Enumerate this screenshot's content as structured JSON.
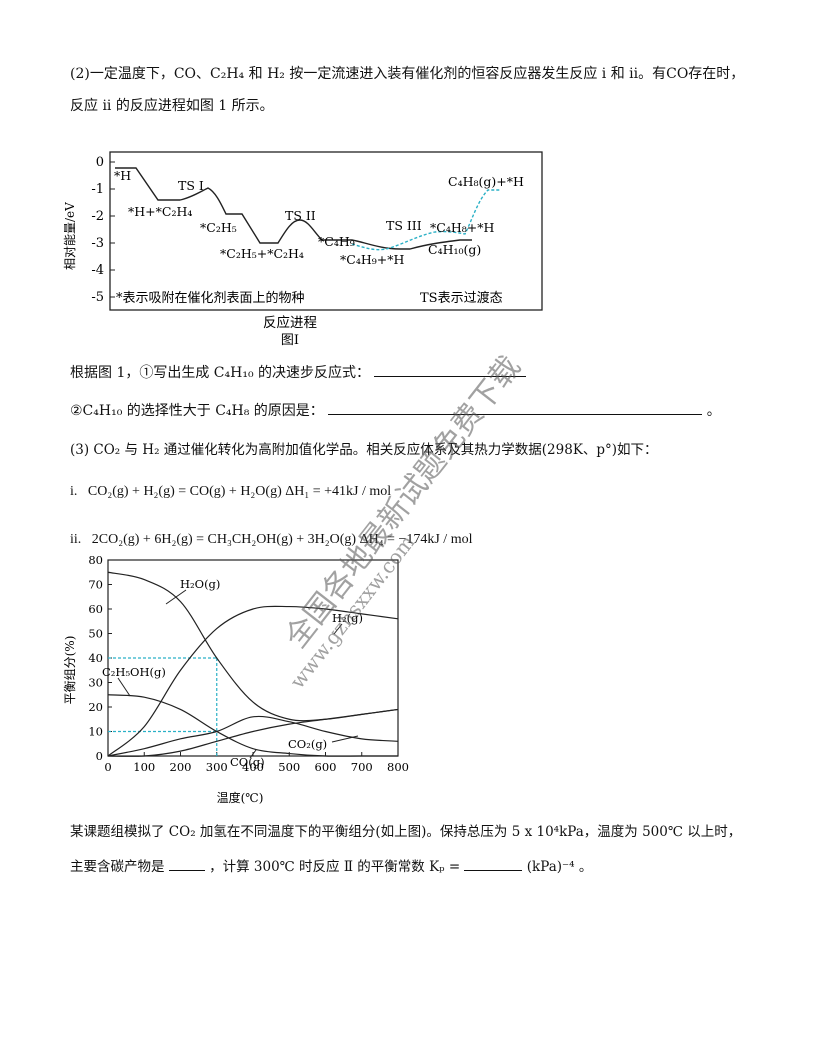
{
  "q2": {
    "line1": "(2)一定温度下，CO、C₂H₄ 和 H₂ 按一定流速进入装有催化剂的恒容反应器发生反应 i 和 ii。有CO存在时，",
    "line2": "反应 ii 的反应进程如图 1 所示。",
    "ask1_prefix": "根据图 1，①写出生成 C₄H₁₀ 的决速步反应式：",
    "ask2_prefix": "②C₄H₁₀ 的选择性大于 C₄H₈ 的原因是：",
    "ask2_suffix": "。"
  },
  "fig1": {
    "ylabel": "相对能量/eV",
    "xlabel": "反应进程",
    "caption": "图Ⅰ",
    "yticks": [
      "0",
      "-1",
      "-2",
      "-3",
      "-4",
      "-5"
    ],
    "note_left": "*表示吸附在催化剂表面上的物种",
    "note_right": "TS表示过渡态",
    "labels": {
      "h": "*H",
      "tsI": "TS I",
      "h_c2h4": "*H+*C₂H₄",
      "c2h5": "*C₂H₅",
      "c2h5_c2h4": "*C₂H₅+*C₂H₄",
      "tsII": "TS II",
      "c4h9": "*C₄H₉",
      "c4h9_h": "*C₄H₉+*H",
      "tsIII": "TS III",
      "c4h8_h_ads": "*C₄H₈+*H",
      "c4h8_g": "C₄H₈(g)+*H",
      "c4h10_g": "C₄H₁₀(g)"
    }
  },
  "q3": {
    "intro": "(3) CO₂ 与 H₂ 通过催化转化为高附加值化学品。相关反应体系及其热力学数据(298K、p°)如下：",
    "r1_num": "i.",
    "r1": "CO₂(g) + H₂(g) = CO(g) + H₂O(g)    ΔH₁ = +41kJ / mol",
    "r2_num": "ii.",
    "r2": "2CO₂(g) + 6H₂(g) = CH₃CH₂OH(g) + 3H₂O(g)  ΔH₄ = −174kJ / mol",
    "after1": "某课题组模拟了 CO₂ 加氢在不同温度下的平衡组分(如上图)。保持总压为 5 x 10⁴kPa，温度为 500℃ 以上时，",
    "after2_a": "主要含碳产物是",
    "after2_b": "，计算 300℃ 时反应 Ⅱ 的平衡常数  Kₚ =",
    "after2_c": "(kPa)⁻⁴ 。"
  },
  "chart_data": {
    "type": "line",
    "xlabel": "温度(℃)",
    "ylabel": "平衡组分(%)",
    "xlim": [
      0,
      800
    ],
    "ylim": [
      0,
      80
    ],
    "xticks": [
      0,
      100,
      200,
      300,
      400,
      500,
      600,
      700,
      800
    ],
    "yticks": [
      0,
      10,
      20,
      30,
      40,
      50,
      60,
      70,
      80
    ],
    "grid": false,
    "series": [
      {
        "name": "H₂O(g)",
        "x": [
          0,
          100,
          200,
          300,
          400,
          500,
          600,
          700,
          800
        ],
        "y": [
          75,
          72,
          63,
          40,
          22,
          15,
          15,
          17,
          19
        ]
      },
      {
        "name": "H₂(g)",
        "x": [
          0,
          100,
          200,
          300,
          400,
          500,
          600,
          700,
          800
        ],
        "y": [
          0,
          12,
          35,
          52,
          60,
          61,
          60,
          58,
          56
        ]
      },
      {
        "name": "C₂H₅OH(g)",
        "x": [
          0,
          100,
          200,
          300,
          400,
          500,
          600,
          700,
          800
        ],
        "y": [
          25,
          24,
          19,
          10,
          3,
          1,
          0,
          0,
          0
        ]
      },
      {
        "name": "CO₂(g)",
        "x": [
          0,
          100,
          200,
          300,
          400,
          500,
          600,
          700,
          800
        ],
        "y": [
          0,
          3,
          7,
          10,
          16,
          14,
          10,
          7,
          6
        ]
      },
      {
        "name": "CO(g)",
        "x": [
          0,
          100,
          200,
          300,
          400,
          500,
          600,
          700,
          800
        ],
        "y": [
          0,
          0,
          2,
          6,
          10,
          13,
          15,
          17,
          19
        ]
      }
    ],
    "guides": [
      {
        "type": "vline",
        "x": 300,
        "ymax": 40
      },
      {
        "type": "hline",
        "y": 40,
        "xmax": 300
      },
      {
        "type": "hline",
        "y": 10,
        "xmax": 300
      }
    ]
  },
  "watermark": {
    "text1": "全国各地最新试题免费下载",
    "text2": "www.gzhsxxw.com"
  }
}
